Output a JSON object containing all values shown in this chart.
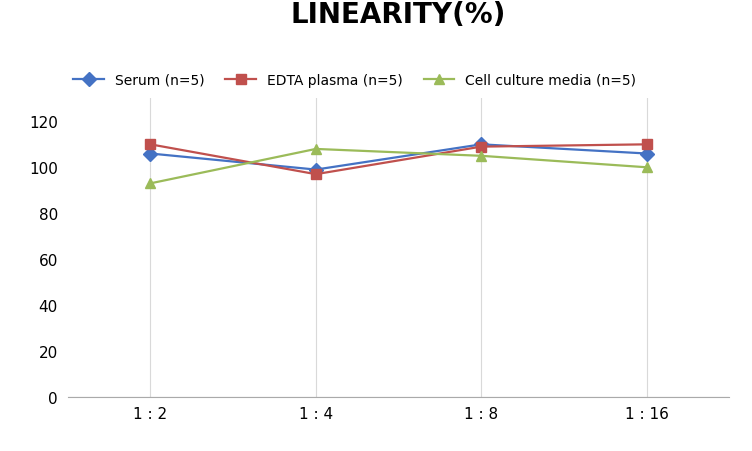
{
  "title": "LINEARITY(%)",
  "title_fontsize": 20,
  "title_fontweight": "bold",
  "x_labels": [
    "1 : 2",
    "1 : 4",
    "1 : 8",
    "1 : 16"
  ],
  "x_positions": [
    0,
    1,
    2,
    3
  ],
  "series": [
    {
      "label": "Serum (n=5)",
      "color": "#4472c4",
      "marker": "D",
      "values": [
        106,
        99,
        110,
        106
      ]
    },
    {
      "label": "EDTA plasma (n=5)",
      "color": "#c0504d",
      "marker": "s",
      "values": [
        110,
        97,
        109,
        110
      ]
    },
    {
      "label": "Cell culture media (n=5)",
      "color": "#9bbb59",
      "marker": "^",
      "values": [
        93,
        108,
        105,
        100
      ]
    }
  ],
  "ylim": [
    0,
    130
  ],
  "yticks": [
    0,
    20,
    40,
    60,
    80,
    100,
    120
  ],
  "background_color": "#ffffff",
  "grid_color": "#d9d9d9",
  "legend_fontsize": 10,
  "tick_fontsize": 11
}
